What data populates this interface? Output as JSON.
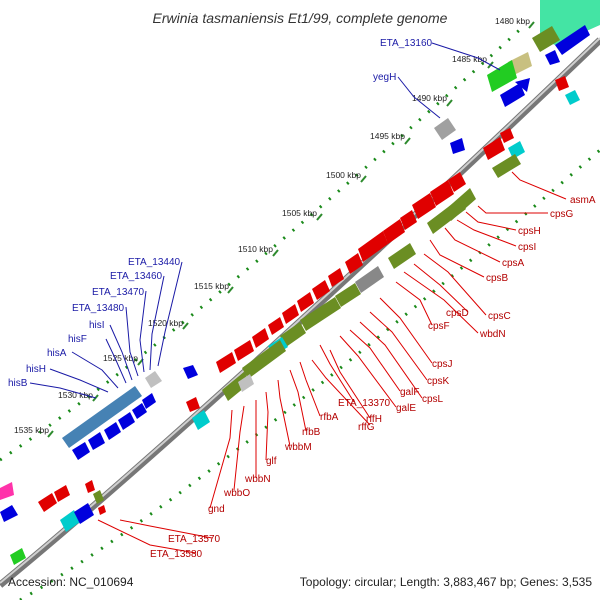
{
  "title": "Erwinia tasmaniensis Et1/99, complete genome",
  "footer": {
    "accession": "Accession: NC_010694",
    "topology": "Topology: circular; Length: 3,883,467 bp; Genes: 3,535"
  },
  "kbp_ticks": [
    "1480 kbp",
    "1485 kbp",
    "1490 kbp",
    "1495 kbp",
    "1500 kbp",
    "1505 kbp",
    "1510 kbp",
    "1515 kbp",
    "1520 kbp",
    "1525 kbp",
    "1530 kbp",
    "1535 kbp"
  ],
  "blue_labels": [
    "ETA_13160",
    "yegH",
    "ETA_13440",
    "ETA_13460",
    "ETA_13470",
    "ETA_13480",
    "hisI",
    "hisF",
    "hisA",
    "hisH",
    "hisB"
  ],
  "red_labels": [
    "asmA",
    "cpsG",
    "cpsH",
    "cpsI",
    "cpsA",
    "cpsB",
    "cpsC",
    "cpsD",
    "wbdN",
    "cpsF",
    "cpsJ",
    "cpsK",
    "cpsL",
    "galF",
    "galE",
    "ETA_13370",
    "rffH",
    "rffG",
    "rfbA",
    "rfbB",
    "wbbM",
    "glf",
    "wbbN",
    "wbbO",
    "gnd",
    "ETA_13570",
    "ETA_13580"
  ],
  "colors": {
    "forward_gene": "#e00000",
    "reverse_gene": "#0000dd",
    "olive_gene": "#6b8e23",
    "cyan_gene": "#00cccc",
    "gray_gene": "#a0a0a0",
    "backbone": "#888888",
    "dotted_axis": "#1a8a1a",
    "tick_green": "#2e8b2e"
  }
}
